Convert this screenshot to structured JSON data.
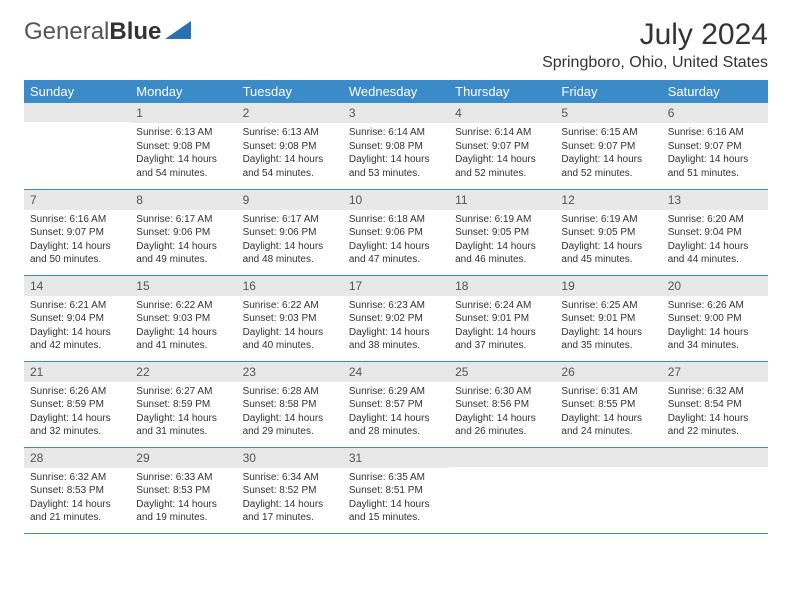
{
  "logo": {
    "text1": "General",
    "text2": "Blue"
  },
  "title": "July 2024",
  "location": "Springboro, Ohio, United States",
  "colors": {
    "header_bg": "#3b8bc9",
    "header_text": "#ffffff",
    "daynum_bg": "#e8e8e8",
    "border": "#3b8bc9",
    "text": "#333333",
    "logo_accent": "#2a6fb0"
  },
  "day_headers": [
    "Sunday",
    "Monday",
    "Tuesday",
    "Wednesday",
    "Thursday",
    "Friday",
    "Saturday"
  ],
  "weeks": [
    [
      {
        "num": "",
        "lines": []
      },
      {
        "num": "1",
        "lines": [
          "Sunrise: 6:13 AM",
          "Sunset: 9:08 PM",
          "Daylight: 14 hours and 54 minutes."
        ]
      },
      {
        "num": "2",
        "lines": [
          "Sunrise: 6:13 AM",
          "Sunset: 9:08 PM",
          "Daylight: 14 hours and 54 minutes."
        ]
      },
      {
        "num": "3",
        "lines": [
          "Sunrise: 6:14 AM",
          "Sunset: 9:08 PM",
          "Daylight: 14 hours and 53 minutes."
        ]
      },
      {
        "num": "4",
        "lines": [
          "Sunrise: 6:14 AM",
          "Sunset: 9:07 PM",
          "Daylight: 14 hours and 52 minutes."
        ]
      },
      {
        "num": "5",
        "lines": [
          "Sunrise: 6:15 AM",
          "Sunset: 9:07 PM",
          "Daylight: 14 hours and 52 minutes."
        ]
      },
      {
        "num": "6",
        "lines": [
          "Sunrise: 6:16 AM",
          "Sunset: 9:07 PM",
          "Daylight: 14 hours and 51 minutes."
        ]
      }
    ],
    [
      {
        "num": "7",
        "lines": [
          "Sunrise: 6:16 AM",
          "Sunset: 9:07 PM",
          "Daylight: 14 hours and 50 minutes."
        ]
      },
      {
        "num": "8",
        "lines": [
          "Sunrise: 6:17 AM",
          "Sunset: 9:06 PM",
          "Daylight: 14 hours and 49 minutes."
        ]
      },
      {
        "num": "9",
        "lines": [
          "Sunrise: 6:17 AM",
          "Sunset: 9:06 PM",
          "Daylight: 14 hours and 48 minutes."
        ]
      },
      {
        "num": "10",
        "lines": [
          "Sunrise: 6:18 AM",
          "Sunset: 9:06 PM",
          "Daylight: 14 hours and 47 minutes."
        ]
      },
      {
        "num": "11",
        "lines": [
          "Sunrise: 6:19 AM",
          "Sunset: 9:05 PM",
          "Daylight: 14 hours and 46 minutes."
        ]
      },
      {
        "num": "12",
        "lines": [
          "Sunrise: 6:19 AM",
          "Sunset: 9:05 PM",
          "Daylight: 14 hours and 45 minutes."
        ]
      },
      {
        "num": "13",
        "lines": [
          "Sunrise: 6:20 AM",
          "Sunset: 9:04 PM",
          "Daylight: 14 hours and 44 minutes."
        ]
      }
    ],
    [
      {
        "num": "14",
        "lines": [
          "Sunrise: 6:21 AM",
          "Sunset: 9:04 PM",
          "Daylight: 14 hours and 42 minutes."
        ]
      },
      {
        "num": "15",
        "lines": [
          "Sunrise: 6:22 AM",
          "Sunset: 9:03 PM",
          "Daylight: 14 hours and 41 minutes."
        ]
      },
      {
        "num": "16",
        "lines": [
          "Sunrise: 6:22 AM",
          "Sunset: 9:03 PM",
          "Daylight: 14 hours and 40 minutes."
        ]
      },
      {
        "num": "17",
        "lines": [
          "Sunrise: 6:23 AM",
          "Sunset: 9:02 PM",
          "Daylight: 14 hours and 38 minutes."
        ]
      },
      {
        "num": "18",
        "lines": [
          "Sunrise: 6:24 AM",
          "Sunset: 9:01 PM",
          "Daylight: 14 hours and 37 minutes."
        ]
      },
      {
        "num": "19",
        "lines": [
          "Sunrise: 6:25 AM",
          "Sunset: 9:01 PM",
          "Daylight: 14 hours and 35 minutes."
        ]
      },
      {
        "num": "20",
        "lines": [
          "Sunrise: 6:26 AM",
          "Sunset: 9:00 PM",
          "Daylight: 14 hours and 34 minutes."
        ]
      }
    ],
    [
      {
        "num": "21",
        "lines": [
          "Sunrise: 6:26 AM",
          "Sunset: 8:59 PM",
          "Daylight: 14 hours and 32 minutes."
        ]
      },
      {
        "num": "22",
        "lines": [
          "Sunrise: 6:27 AM",
          "Sunset: 8:59 PM",
          "Daylight: 14 hours and 31 minutes."
        ]
      },
      {
        "num": "23",
        "lines": [
          "Sunrise: 6:28 AM",
          "Sunset: 8:58 PM",
          "Daylight: 14 hours and 29 minutes."
        ]
      },
      {
        "num": "24",
        "lines": [
          "Sunrise: 6:29 AM",
          "Sunset: 8:57 PM",
          "Daylight: 14 hours and 28 minutes."
        ]
      },
      {
        "num": "25",
        "lines": [
          "Sunrise: 6:30 AM",
          "Sunset: 8:56 PM",
          "Daylight: 14 hours and 26 minutes."
        ]
      },
      {
        "num": "26",
        "lines": [
          "Sunrise: 6:31 AM",
          "Sunset: 8:55 PM",
          "Daylight: 14 hours and 24 minutes."
        ]
      },
      {
        "num": "27",
        "lines": [
          "Sunrise: 6:32 AM",
          "Sunset: 8:54 PM",
          "Daylight: 14 hours and 22 minutes."
        ]
      }
    ],
    [
      {
        "num": "28",
        "lines": [
          "Sunrise: 6:32 AM",
          "Sunset: 8:53 PM",
          "Daylight: 14 hours and 21 minutes."
        ]
      },
      {
        "num": "29",
        "lines": [
          "Sunrise: 6:33 AM",
          "Sunset: 8:53 PM",
          "Daylight: 14 hours and 19 minutes."
        ]
      },
      {
        "num": "30",
        "lines": [
          "Sunrise: 6:34 AM",
          "Sunset: 8:52 PM",
          "Daylight: 14 hours and 17 minutes."
        ]
      },
      {
        "num": "31",
        "lines": [
          "Sunrise: 6:35 AM",
          "Sunset: 8:51 PM",
          "Daylight: 14 hours and 15 minutes."
        ]
      },
      {
        "num": "",
        "lines": []
      },
      {
        "num": "",
        "lines": []
      },
      {
        "num": "",
        "lines": []
      }
    ]
  ]
}
